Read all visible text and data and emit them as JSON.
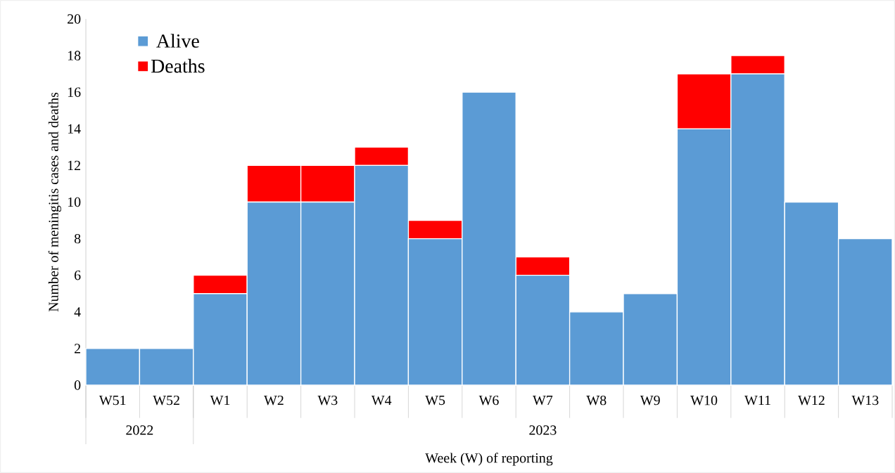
{
  "chart_data": {
    "type": "bar",
    "stacked": true,
    "xlabel": "Week (W) of reporting",
    "ylabel": "Number of meningitis cases and deaths",
    "categories": [
      "W51",
      "W52",
      "W1",
      "W2",
      "W3",
      "W4",
      "W5",
      "W6",
      "W7",
      "W8",
      "W9",
      "W10",
      "W11",
      "W12",
      "W13"
    ],
    "series": [
      {
        "name": "Alive",
        "color": "#5b9bd5",
        "values": [
          2,
          2,
          5,
          10,
          10,
          12,
          8,
          16,
          6,
          4,
          5,
          14,
          17,
          10,
          8
        ]
      },
      {
        "name": "Deaths",
        "color": "#ff0000",
        "values": [
          0,
          0,
          1,
          2,
          2,
          1,
          1,
          0,
          1,
          0,
          0,
          3,
          1,
          0,
          0
        ]
      }
    ],
    "ylim": [
      0,
      20
    ],
    "yticks": [
      0,
      2,
      4,
      6,
      8,
      10,
      12,
      14,
      16,
      18,
      20
    ],
    "legend": "top left",
    "annotations": [
      "2022",
      "2023"
    ]
  }
}
